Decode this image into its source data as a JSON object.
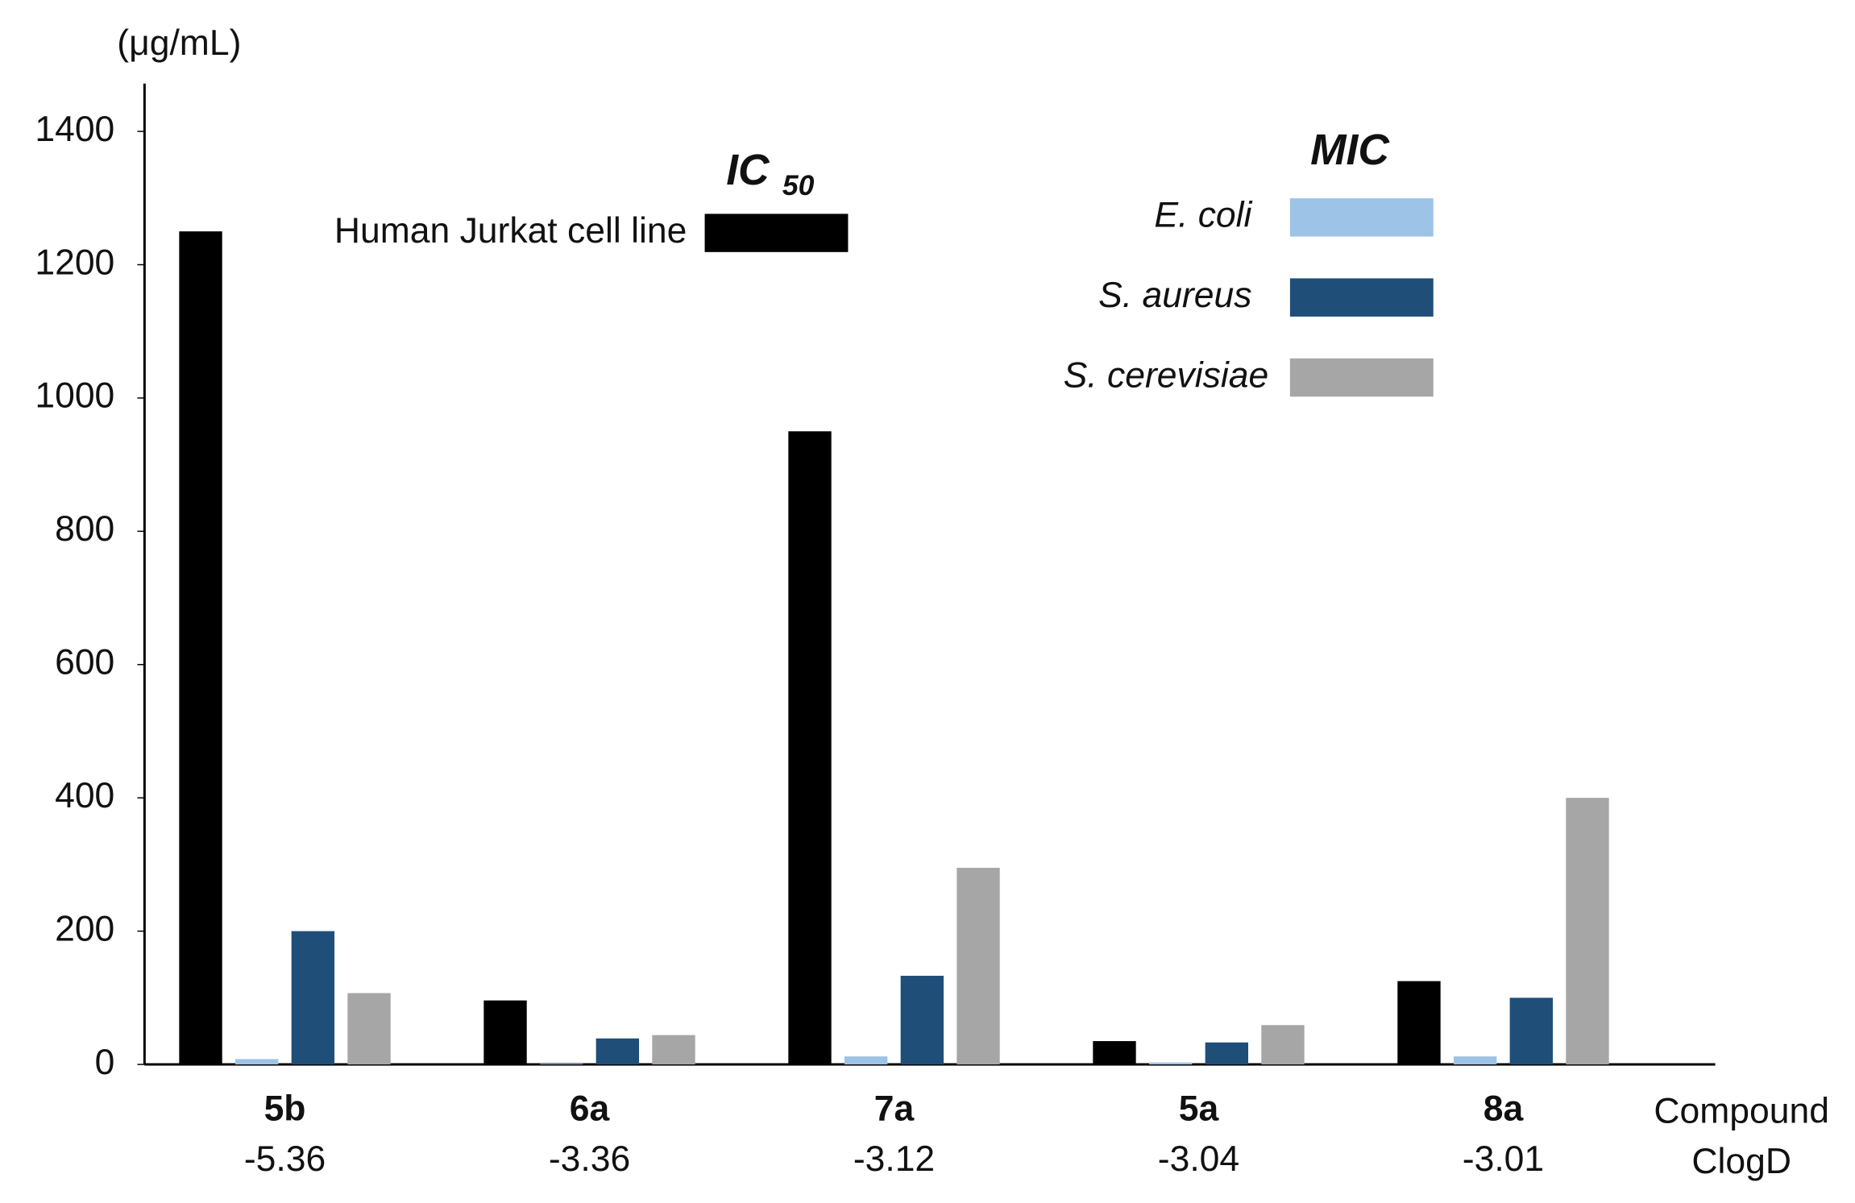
{
  "chart_data": {
    "type": "bar",
    "y_unit": "(μg/mL)",
    "x_label": "Compound",
    "x_sublabel": "ClogD",
    "ic50_heading": {
      "main": "IC",
      "sub": "50"
    },
    "mic_heading": "MIC",
    "categories": [
      "5b",
      "6a",
      "7a",
      "5a",
      "8a"
    ],
    "clogd": [
      "-5.36",
      "-3.36",
      "-3.12",
      "-3.04",
      "-3.01"
    ],
    "series": [
      {
        "name": "Human Jurkat cell line",
        "color": "#000000",
        "values": [
          1250,
          96,
          950,
          35,
          125
        ]
      },
      {
        "name": "E. coli",
        "color": "#9dc3e6",
        "values": [
          8,
          1,
          12,
          3,
          12
        ]
      },
      {
        "name": "S. aureus",
        "color": "#1f4e79",
        "values": [
          200,
          39,
          133,
          33,
          100
        ]
      },
      {
        "name": "S. cerevisiae",
        "color": "#a6a6a6",
        "values": [
          107,
          44,
          295,
          59,
          400
        ]
      }
    ],
    "ylim": [
      0,
      1400
    ],
    "yticks": [
      0,
      200,
      400,
      600,
      800,
      1000,
      1200,
      1400
    ],
    "grid": false
  }
}
